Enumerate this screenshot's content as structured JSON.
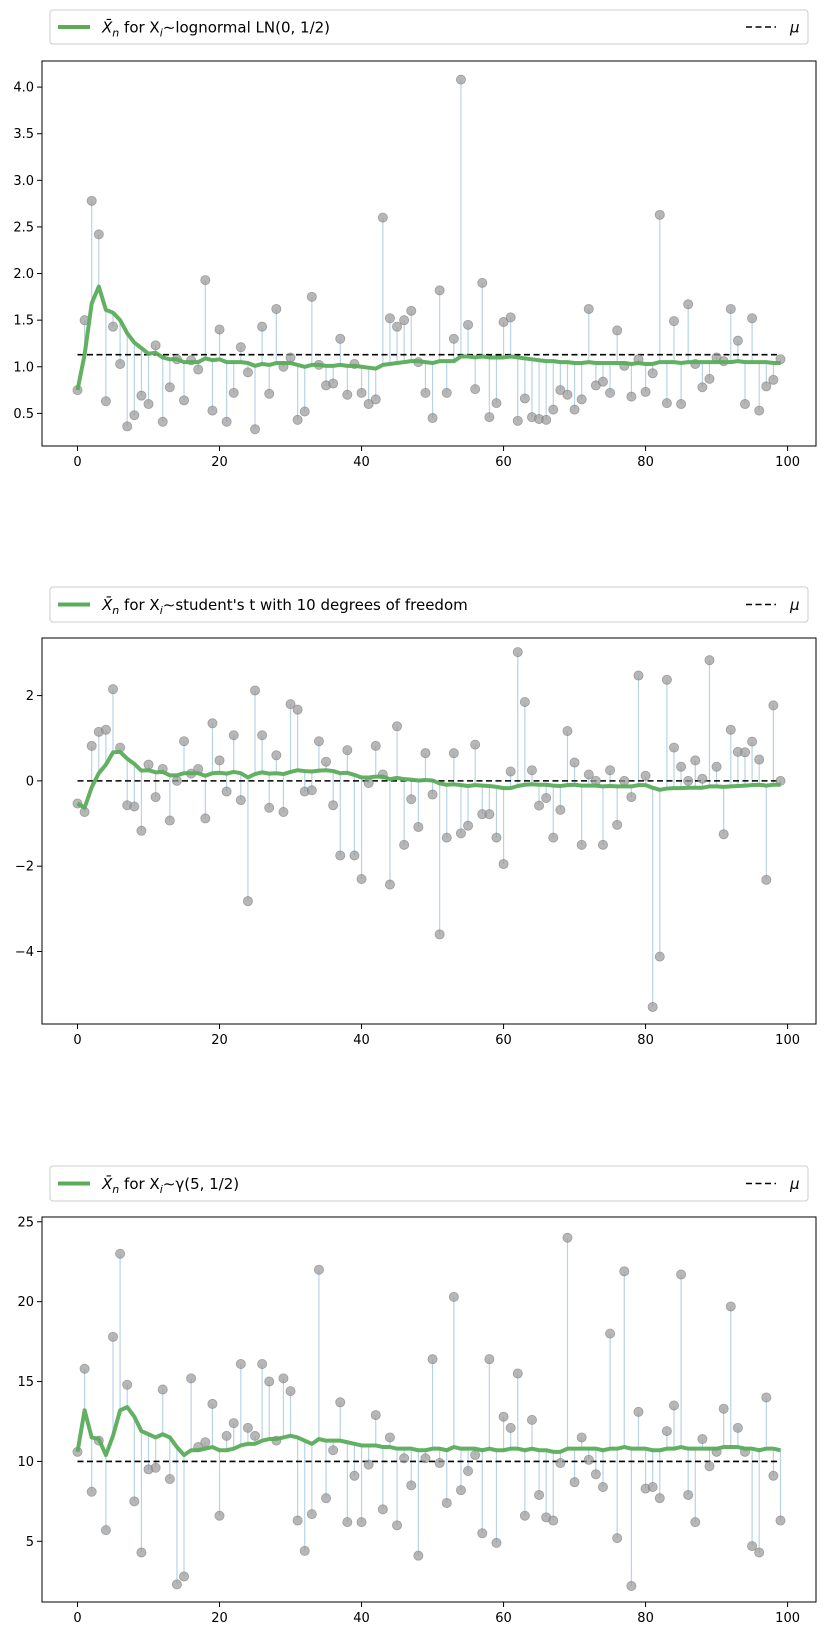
{
  "colors": {
    "mean_line": "#5aac5a",
    "mu_line": "#000000",
    "points": "#999999",
    "stems": "#b9d3e6",
    "axes": "#000000"
  },
  "chart_data": [
    {
      "type": "scatter",
      "legend": {
        "series_label_prefix": "X̄",
        "series_label_sub": "n",
        "series_label_mid": " for X",
        "series_label_sub2": "i",
        "series_label_dist": "∼lognormal LN(0, 1/2)",
        "mu_label": "μ",
        "placement": "top, above axes"
      },
      "mu": 1.13,
      "xlim": [
        -5,
        104
      ],
      "ylim": [
        0.15,
        4.28
      ],
      "xticks": [
        0,
        20,
        40,
        60,
        80,
        100
      ],
      "yticks": [
        0.5,
        1.0,
        1.5,
        2.0,
        2.5,
        3.0,
        3.5,
        4.0
      ],
      "ytick_labels": [
        "0.5",
        "1.0",
        "1.5",
        "2.0",
        "2.5",
        "3.0",
        "3.5",
        "4.0"
      ],
      "samples": [
        0.75,
        1.5,
        2.78,
        2.42,
        0.63,
        1.43,
        1.03,
        0.36,
        0.48,
        0.69,
        0.6,
        1.23,
        0.41,
        0.78,
        1.08,
        0.64,
        1.07,
        0.97,
        1.93,
        0.53,
        1.4,
        0.41,
        0.72,
        1.21,
        0.94,
        0.33,
        1.43,
        0.71,
        1.62,
        1.0,
        1.1,
        0.43,
        0.52,
        1.75,
        1.02,
        0.8,
        0.82,
        1.3,
        0.7,
        1.03,
        0.72,
        0.6,
        0.65,
        2.6,
        1.52,
        1.43,
        1.5,
        1.6,
        1.05,
        0.72,
        0.45,
        1.82,
        0.72,
        1.3,
        4.08,
        1.45,
        0.76,
        1.9,
        0.46,
        0.61,
        1.48,
        1.53,
        0.42,
        0.66,
        0.46,
        0.44,
        0.43,
        0.54,
        0.75,
        0.7,
        0.54,
        0.65,
        1.62,
        0.8,
        0.84,
        0.72,
        1.39,
        1.01,
        0.68,
        1.08,
        0.73,
        0.93,
        2.63,
        0.61,
        1.49,
        0.6,
        1.67,
        1.03,
        0.78,
        0.87,
        1.1,
        1.06,
        1.62,
        1.28,
        0.6,
        1.52,
        0.53,
        0.79,
        0.86,
        1.08
      ],
      "running_mean": [
        0.75,
        1.13,
        1.68,
        1.86,
        1.61,
        1.58,
        1.5,
        1.36,
        1.26,
        1.2,
        1.14,
        1.15,
        1.1,
        1.08,
        1.08,
        1.05,
        1.05,
        1.05,
        1.09,
        1.07,
        1.08,
        1.05,
        1.05,
        1.05,
        1.04,
        1.01,
        1.03,
        1.02,
        1.04,
        1.04,
        1.04,
        1.02,
        1.0,
        1.02,
        1.02,
        1.01,
        1.01,
        1.02,
        1.01,
        1.01,
        1.0,
        0.99,
        0.98,
        1.02,
        1.03,
        1.04,
        1.05,
        1.06,
        1.06,
        1.05,
        1.04,
        1.06,
        1.06,
        1.06,
        1.11,
        1.11,
        1.1,
        1.11,
        1.1,
        1.1,
        1.1,
        1.11,
        1.1,
        1.09,
        1.08,
        1.07,
        1.06,
        1.06,
        1.05,
        1.05,
        1.04,
        1.04,
        1.05,
        1.04,
        1.04,
        1.04,
        1.04,
        1.04,
        1.03,
        1.04,
        1.03,
        1.03,
        1.05,
        1.05,
        1.05,
        1.04,
        1.05,
        1.05,
        1.05,
        1.05,
        1.05,
        1.05,
        1.05,
        1.06,
        1.05,
        1.05,
        1.05,
        1.05,
        1.04,
        1.04
      ]
    },
    {
      "type": "scatter",
      "legend": {
        "series_label_prefix": "X̄",
        "series_label_sub": "n",
        "series_label_mid": " for X",
        "series_label_sub2": "i",
        "series_label_dist": "∼student's t with 10 degrees of freedom",
        "mu_label": "μ",
        "placement": "top, above axes"
      },
      "mu": 0,
      "xlim": [
        -5,
        104
      ],
      "ylim": [
        -5.7,
        3.35
      ],
      "xticks": [
        0,
        20,
        40,
        60,
        80,
        100
      ],
      "yticks": [
        -4,
        -2,
        0,
        2
      ],
      "ytick_labels": [
        "−4",
        "−2",
        "0",
        "2"
      ],
      "samples": [
        -0.53,
        -0.73,
        0.82,
        1.15,
        1.2,
        2.15,
        0.78,
        -0.57,
        -0.6,
        -1.17,
        0.38,
        -0.38,
        0.28,
        -0.93,
        0.0,
        0.93,
        0.17,
        0.28,
        -0.88,
        1.35,
        0.48,
        -0.25,
        1.07,
        -0.45,
        -2.82,
        2.12,
        1.07,
        -0.63,
        0.6,
        -0.73,
        1.8,
        1.67,
        -0.25,
        -0.22,
        0.93,
        0.45,
        -0.57,
        -1.75,
        0.72,
        -1.75,
        -2.3,
        -0.05,
        0.82,
        0.15,
        -2.43,
        1.28,
        -1.5,
        -0.43,
        -1.08,
        0.65,
        -0.32,
        -3.6,
        -1.33,
        0.65,
        -1.23,
        -1.05,
        0.85,
        -0.78,
        -0.78,
        -1.33,
        -1.95,
        0.22,
        3.02,
        1.85,
        0.25,
        -0.58,
        -0.4,
        -1.33,
        -0.68,
        1.17,
        0.43,
        -1.5,
        0.15,
        0.0,
        -1.5,
        0.25,
        -1.03,
        0.0,
        -0.38,
        2.47,
        0.12,
        -5.3,
        -4.12,
        2.37,
        0.78,
        0.33,
        0.0,
        0.48,
        0.05,
        2.83,
        0.33,
        -1.25,
        1.2,
        0.68,
        0.67,
        0.92,
        0.5,
        -2.32,
        1.77,
        0.0
      ],
      "running_mean": [
        -0.53,
        -0.63,
        -0.15,
        0.18,
        0.38,
        0.67,
        0.68,
        0.52,
        0.4,
        0.24,
        0.25,
        0.2,
        0.21,
        0.13,
        0.13,
        0.18,
        0.18,
        0.18,
        0.12,
        0.18,
        0.19,
        0.17,
        0.21,
        0.18,
        0.08,
        0.16,
        0.2,
        0.17,
        0.18,
        0.16,
        0.21,
        0.25,
        0.23,
        0.22,
        0.24,
        0.25,
        0.23,
        0.18,
        0.19,
        0.14,
        0.08,
        0.08,
        0.1,
        0.1,
        0.04,
        0.07,
        0.04,
        0.03,
        0.01,
        0.02,
        0.01,
        -0.06,
        -0.09,
        -0.08,
        -0.1,
        -0.12,
        -0.1,
        -0.11,
        -0.12,
        -0.14,
        -0.17,
        -0.17,
        -0.12,
        -0.09,
        -0.08,
        -0.09,
        -0.09,
        -0.11,
        -0.12,
        -0.1,
        -0.09,
        -0.11,
        -0.11,
        -0.11,
        -0.13,
        -0.12,
        -0.13,
        -0.13,
        -0.13,
        -0.1,
        -0.1,
        -0.16,
        -0.21,
        -0.18,
        -0.17,
        -0.17,
        -0.16,
        -0.16,
        -0.16,
        -0.13,
        -0.13,
        -0.14,
        -0.13,
        -0.12,
        -0.11,
        -0.1,
        -0.09,
        -0.11,
        -0.09,
        -0.09
      ]
    },
    {
      "type": "scatter",
      "legend": {
        "series_label_prefix": "X̄",
        "series_label_sub": "n",
        "series_label_mid": " for X",
        "series_label_sub2": "i",
        "series_label_dist": "∼γ(5, 1/2)",
        "mu_label": "μ",
        "placement": "top, above axes"
      },
      "mu": 10,
      "xlim": [
        -5,
        104
      ],
      "ylim": [
        1.2,
        25.3
      ],
      "xticks": [
        0,
        20,
        40,
        60,
        80,
        100
      ],
      "yticks": [
        5,
        10,
        15,
        20,
        25
      ],
      "ytick_labels": [
        "5",
        "10",
        "15",
        "20",
        "25"
      ],
      "samples": [
        10.6,
        15.8,
        8.1,
        11.3,
        5.7,
        17.8,
        23.0,
        14.8,
        7.5,
        4.3,
        9.5,
        9.6,
        14.5,
        8.9,
        2.3,
        2.8,
        15.2,
        10.9,
        11.2,
        13.6,
        6.6,
        11.6,
        12.4,
        16.1,
        12.1,
        11.6,
        16.1,
        15.0,
        11.3,
        15.2,
        14.4,
        6.3,
        4.4,
        6.7,
        22.0,
        7.7,
        10.7,
        13.7,
        6.2,
        9.1,
        6.2,
        9.8,
        12.9,
        7.0,
        11.5,
        6.0,
        10.2,
        8.5,
        4.1,
        10.2,
        16.4,
        9.9,
        7.4,
        20.3,
        8.2,
        9.4,
        10.4,
        5.5,
        16.4,
        4.9,
        12.8,
        12.1,
        15.5,
        6.6,
        12.6,
        7.9,
        6.5,
        6.3,
        9.9,
        24.0,
        8.7,
        11.5,
        10.1,
        9.2,
        8.4,
        18.0,
        5.2,
        21.9,
        2.2,
        13.1,
        8.3,
        8.4,
        7.7,
        11.9,
        13.5,
        21.7,
        7.9,
        6.2,
        11.4,
        9.7,
        10.6,
        13.3,
        19.7,
        12.1,
        10.6,
        4.7,
        4.3,
        14.0,
        9.1,
        6.3
      ],
      "running_mean": [
        10.6,
        13.2,
        11.5,
        11.4,
        10.4,
        11.6,
        13.2,
        13.4,
        12.8,
        11.9,
        11.7,
        11.5,
        11.7,
        11.5,
        10.9,
        10.4,
        10.7,
        10.7,
        10.8,
        10.9,
        10.7,
        10.7,
        10.8,
        11.0,
        11.1,
        11.1,
        11.3,
        11.4,
        11.4,
        11.5,
        11.6,
        11.5,
        11.3,
        11.1,
        11.4,
        11.3,
        11.3,
        11.3,
        11.2,
        11.1,
        11.0,
        11.0,
        11.0,
        10.9,
        10.9,
        10.8,
        10.8,
        10.8,
        10.7,
        10.7,
        10.8,
        10.8,
        10.7,
        10.9,
        10.8,
        10.8,
        10.8,
        10.7,
        10.8,
        10.7,
        10.7,
        10.8,
        10.8,
        10.7,
        10.8,
        10.7,
        10.7,
        10.6,
        10.6,
        10.8,
        10.8,
        10.8,
        10.8,
        10.8,
        10.7,
        10.8,
        10.8,
        10.9,
        10.8,
        10.8,
        10.8,
        10.7,
        10.7,
        10.8,
        10.8,
        10.9,
        10.8,
        10.8,
        10.8,
        10.8,
        10.8,
        10.9,
        10.9,
        10.9,
        10.8,
        10.8,
        10.7,
        10.8,
        10.8,
        10.7
      ]
    }
  ]
}
